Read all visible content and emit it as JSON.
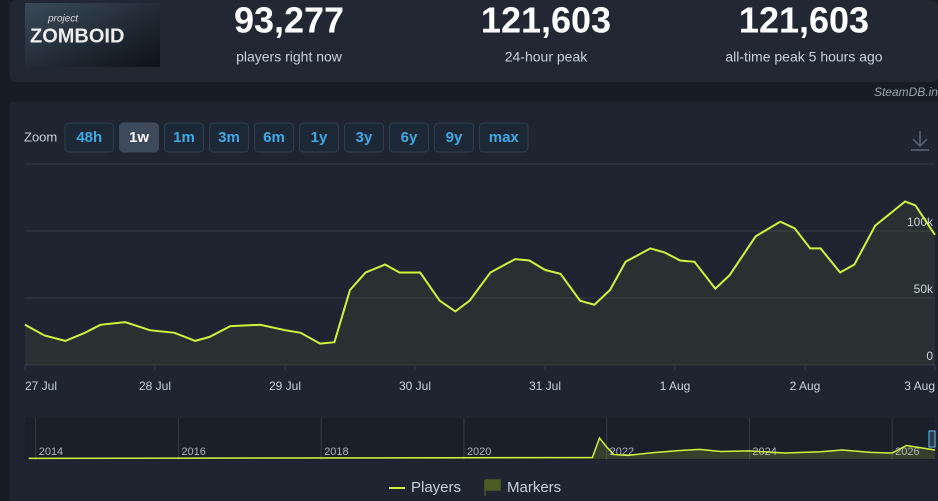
{
  "header": {
    "logo_small": "project",
    "logo": "ZOMBOID",
    "stats": [
      {
        "value": "93,277",
        "label": "players right now"
      },
      {
        "value": "121,603",
        "label": "24-hour peak"
      },
      {
        "value": "121,603",
        "label": "all-time peak 5 hours ago"
      }
    ]
  },
  "credit": "SteamDB.info",
  "zoom": {
    "label": "Zoom",
    "buttons": [
      "48h",
      "1w",
      "1m",
      "3m",
      "6m",
      "1y",
      "3y",
      "6y",
      "9y",
      "max"
    ],
    "active": 1
  },
  "chart_data": {
    "type": "line",
    "x": [
      0,
      0.15,
      0.31,
      0.46,
      0.58,
      0.77,
      0.96,
      1.15,
      1.31,
      1.42,
      1.58,
      1.81,
      2.0,
      2.12,
      2.27,
      2.38,
      2.5,
      2.62,
      2.77,
      2.88,
      3.04,
      3.19,
      3.31,
      3.42,
      3.58,
      3.77,
      3.88,
      4.0,
      4.12,
      4.27,
      4.38,
      4.5,
      4.62,
      4.81,
      4.92,
      5.04,
      5.15,
      5.31,
      5.42,
      5.62,
      5.81,
      5.92,
      6.04,
      6.12,
      6.27,
      6.38,
      6.54,
      6.77,
      6.85,
      7.0
    ],
    "series": [
      {
        "name": "Players",
        "color": "#d2f33c",
        "values": [
          30000,
          22000,
          18000,
          24000,
          30000,
          32000,
          26000,
          24000,
          18000,
          21000,
          29000,
          30000,
          26000,
          24000,
          16000,
          17000,
          56000,
          69000,
          75000,
          69000,
          69000,
          48000,
          40000,
          48000,
          69000,
          79000,
          78000,
          71000,
          68000,
          48000,
          45000,
          56000,
          77000,
          87000,
          84000,
          78000,
          77000,
          57000,
          67000,
          96000,
          107000,
          102000,
          87000,
          87000,
          69000,
          75000,
          104000,
          122000,
          119000,
          97000
        ]
      }
    ],
    "markers": {
      "name": "Markers",
      "color": "#4d5b24"
    },
    "xlim": [
      0,
      7
    ],
    "xticks": [
      {
        "value": 0,
        "label": "27 Jul"
      },
      {
        "value": 1,
        "label": "28 Jul"
      },
      {
        "value": 2,
        "label": "29 Jul"
      },
      {
        "value": 3,
        "label": "30 Jul"
      },
      {
        "value": 4,
        "label": "31 Jul"
      },
      {
        "value": 5,
        "label": "1 Aug"
      },
      {
        "value": 6,
        "label": "2 Aug"
      },
      {
        "value": 7,
        "label": "3 Aug"
      }
    ],
    "ylim": [
      0,
      150000
    ],
    "yticks": [
      0,
      {
        "value": 50000,
        "label": "50k"
      },
      {
        "value": 100000,
        "label": "100k"
      }
    ],
    "grid": true,
    "navigator": {
      "x": [
        2013.9,
        2021.8,
        2021.9,
        2022.0,
        2022.1,
        2022.3,
        2022.6,
        2023.0,
        2023.3,
        2023.6,
        2024.0,
        2024.5,
        2025.0,
        2025.3,
        2025.7,
        2026.0,
        2026.2,
        2026.6
      ],
      "values": [
        2000,
        5000,
        70000,
        40000,
        15000,
        12000,
        20000,
        28000,
        32000,
        25000,
        27000,
        20000,
        24000,
        30000,
        22000,
        20000,
        45000,
        30000
      ],
      "xlim": [
        2013.85,
        2026.6
      ],
      "xticks": [
        2014,
        2016,
        2018,
        2020,
        2022,
        2024,
        2026
      ],
      "ylim": [
        0,
        130000
      ]
    }
  }
}
